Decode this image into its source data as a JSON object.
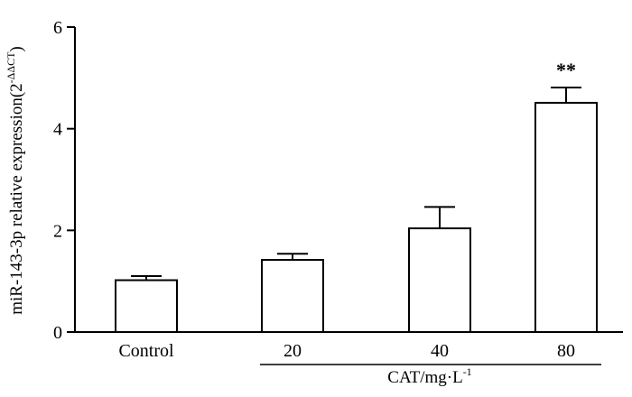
{
  "chart_data": {
    "type": "bar",
    "categories": [
      "Control",
      "20",
      "40",
      "80"
    ],
    "values": [
      1.02,
      1.42,
      2.04,
      4.51
    ],
    "errors": [
      0.08,
      0.12,
      0.42,
      0.3
    ],
    "annotations": [
      "",
      "",
      "",
      "**"
    ],
    "ylim": [
      0,
      6
    ],
    "yticks": [
      0,
      2,
      4,
      6
    ],
    "ylabel_main": "miR-143-3p relative expression(2",
    "ylabel_sup": "-ΔΔCT",
    "ylabel_close": ")",
    "xlabel_main": "CAT/mg·L",
    "xlabel_sup": "-1",
    "colors": {
      "bar_fill": "#ffffff",
      "stroke": "#000000"
    }
  }
}
